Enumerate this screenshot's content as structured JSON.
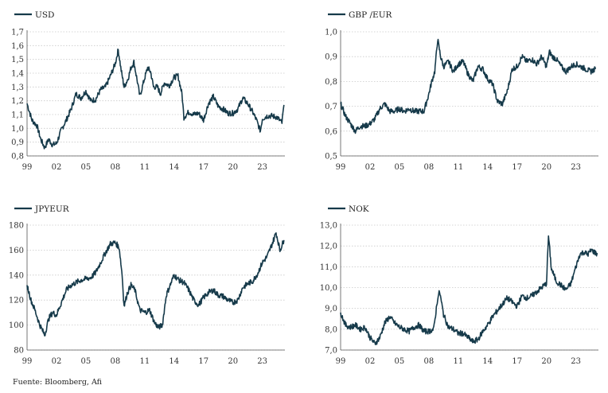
{
  "source": "Fuente: Bloomberg, Afi",
  "colors": {
    "series": "#163a4a",
    "grid": "#c9c9c9"
  },
  "chart_data": [
    {
      "type": "line",
      "legend": "USD",
      "yticks": [
        "0,8",
        "0,9",
        "1,0",
        "1,1",
        "1,2",
        "1,3",
        "1,4",
        "1,5",
        "1,6",
        "1,7"
      ],
      "ytick_values": [
        0.8,
        0.9,
        1.0,
        1.1,
        1.2,
        1.3,
        1.4,
        1.5,
        1.6,
        1.7
      ],
      "xticks": [
        "99",
        "02",
        "05",
        "08",
        "11",
        "14",
        "17",
        "20",
        "23"
      ],
      "xtick_values": [
        1999,
        2002,
        2005,
        2008,
        2011,
        2014,
        2017,
        2020,
        2023
      ],
      "xlim": [
        1999,
        2025.3
      ],
      "ylim": [
        0.8,
        1.7
      ],
      "x": [
        1999.0,
        1999.5,
        2000.0,
        2000.4,
        2000.8,
        2001.2,
        2001.6,
        2002.0,
        2002.5,
        2003.0,
        2003.5,
        2004.0,
        2004.5,
        2005.0,
        2005.5,
        2006.0,
        2006.5,
        2007.0,
        2007.5,
        2008.0,
        2008.3,
        2008.6,
        2008.9,
        2009.3,
        2009.6,
        2009.9,
        2010.3,
        2010.5,
        2010.9,
        2011.3,
        2011.6,
        2011.9,
        2012.3,
        2012.6,
        2013.0,
        2013.5,
        2014.0,
        2014.4,
        2014.8,
        2015.0,
        2015.5,
        2016.0,
        2016.5,
        2017.0,
        2017.5,
        2018.0,
        2018.5,
        2019.0,
        2019.5,
        2020.0,
        2020.5,
        2021.0,
        2021.5,
        2022.0,
        2022.4,
        2022.8,
        2023.0,
        2023.5,
        2024.0,
        2024.5,
        2025.0,
        2025.2
      ],
      "y": [
        1.18,
        1.06,
        1.02,
        0.92,
        0.86,
        0.92,
        0.88,
        0.89,
        0.99,
        1.06,
        1.14,
        1.25,
        1.22,
        1.27,
        1.2,
        1.21,
        1.28,
        1.3,
        1.38,
        1.47,
        1.57,
        1.42,
        1.3,
        1.36,
        1.44,
        1.48,
        1.32,
        1.23,
        1.34,
        1.44,
        1.41,
        1.3,
        1.3,
        1.25,
        1.33,
        1.31,
        1.37,
        1.38,
        1.25,
        1.08,
        1.12,
        1.1,
        1.11,
        1.06,
        1.18,
        1.23,
        1.16,
        1.14,
        1.11,
        1.11,
        1.14,
        1.22,
        1.18,
        1.12,
        1.06,
        0.98,
        1.07,
        1.09,
        1.09,
        1.08,
        1.04,
        1.17
      ]
    },
    {
      "type": "line",
      "legend": "GBP /EUR",
      "yticks": [
        "0,5",
        "0,6",
        "0,7",
        "0,8",
        "0,9",
        "1,0"
      ],
      "ytick_values": [
        0.5,
        0.6,
        0.7,
        0.8,
        0.9,
        1.0
      ],
      "xticks": [
        "99",
        "02",
        "05",
        "08",
        "11",
        "14",
        "17",
        "20",
        "23"
      ],
      "xtick_values": [
        1999,
        2002,
        2005,
        2008,
        2011,
        2014,
        2017,
        2020,
        2023
      ],
      "xlim": [
        1999,
        2025.3
      ],
      "ylim": [
        0.5,
        1.0
      ],
      "x": [
        1999.0,
        1999.5,
        2000.0,
        2000.5,
        2001.0,
        2001.5,
        2002.0,
        2002.5,
        2003.0,
        2003.5,
        2004.0,
        2004.5,
        2005.0,
        2005.5,
        2006.0,
        2006.5,
        2007.0,
        2007.5,
        2008.0,
        2008.3,
        2008.6,
        2008.9,
        2009.2,
        2009.5,
        2010.0,
        2010.5,
        2011.0,
        2011.5,
        2012.0,
        2012.5,
        2013.0,
        2013.5,
        2014.0,
        2014.5,
        2015.0,
        2015.5,
        2016.0,
        2016.5,
        2017.0,
        2017.5,
        2018.0,
        2018.5,
        2019.0,
        2019.5,
        2020.0,
        2020.3,
        2020.6,
        2021.0,
        2021.5,
        2022.0,
        2022.5,
        2023.0,
        2023.5,
        2024.0,
        2024.5,
        2025.0
      ],
      "y": [
        0.71,
        0.66,
        0.63,
        0.6,
        0.62,
        0.62,
        0.63,
        0.65,
        0.69,
        0.71,
        0.68,
        0.68,
        0.69,
        0.68,
        0.69,
        0.68,
        0.68,
        0.68,
        0.75,
        0.8,
        0.84,
        0.97,
        0.9,
        0.86,
        0.88,
        0.84,
        0.87,
        0.88,
        0.83,
        0.8,
        0.86,
        0.85,
        0.81,
        0.79,
        0.72,
        0.71,
        0.76,
        0.85,
        0.86,
        0.9,
        0.88,
        0.89,
        0.87,
        0.9,
        0.86,
        0.92,
        0.9,
        0.89,
        0.86,
        0.84,
        0.86,
        0.87,
        0.86,
        0.85,
        0.84,
        0.85
      ]
    },
    {
      "type": "line",
      "legend": "JPYEUR",
      "yticks": [
        "80",
        "100",
        "120",
        "140",
        "160",
        "180"
      ],
      "ytick_values": [
        80,
        100,
        120,
        140,
        160,
        180
      ],
      "xticks": [
        "99",
        "02",
        "05",
        "08",
        "11",
        "14",
        "17",
        "20",
        "23"
      ],
      "xtick_values": [
        1999,
        2002,
        2005,
        2008,
        2011,
        2014,
        2017,
        2020,
        2023
      ],
      "xlim": [
        1999,
        2025.3
      ],
      "ylim": [
        80,
        180
      ],
      "x": [
        1999.0,
        1999.4,
        1999.8,
        2000.3,
        2000.8,
        2001.2,
        2001.6,
        2002.0,
        2002.5,
        2003.0,
        2003.5,
        2004.0,
        2004.5,
        2005.0,
        2005.5,
        2006.0,
        2006.5,
        2007.0,
        2007.5,
        2008.0,
        2008.4,
        2008.7,
        2008.9,
        2009.2,
        2009.6,
        2010.0,
        2010.5,
        2011.0,
        2011.5,
        2012.0,
        2012.4,
        2012.8,
        2013.2,
        2013.6,
        2014.0,
        2014.5,
        2015.0,
        2015.5,
        2016.0,
        2016.5,
        2017.0,
        2017.5,
        2018.0,
        2018.5,
        2019.0,
        2019.5,
        2020.0,
        2020.5,
        2021.0,
        2021.5,
        2022.0,
        2022.5,
        2023.0,
        2023.5,
        2024.0,
        2024.4,
        2024.8,
        2025.2
      ],
      "y": [
        132,
        120,
        112,
        100,
        92,
        105,
        110,
        108,
        118,
        128,
        132,
        134,
        136,
        137,
        138,
        142,
        150,
        158,
        165,
        166,
        162,
        140,
        115,
        125,
        132,
        128,
        112,
        110,
        112,
        102,
        98,
        100,
        124,
        132,
        140,
        136,
        134,
        128,
        120,
        116,
        122,
        126,
        128,
        124,
        123,
        120,
        118,
        120,
        130,
        133,
        135,
        141,
        150,
        155,
        165,
        174,
        160,
        168
      ]
    },
    {
      "type": "line",
      "legend": "NOK",
      "yticks": [
        "7,0",
        "8,0",
        "9,0",
        "10,0",
        "11,0",
        "12,0",
        "13,0"
      ],
      "ytick_values": [
        7,
        8,
        9,
        10,
        11,
        12,
        13
      ],
      "xticks": [
        "99",
        "02",
        "05",
        "08",
        "11",
        "14",
        "17",
        "20",
        "23"
      ],
      "xtick_values": [
        1999,
        2002,
        2005,
        2008,
        2011,
        2014,
        2017,
        2020,
        2023
      ],
      "xlim": [
        1999,
        2025.3
      ],
      "ylim": [
        7.0,
        13.0
      ],
      "x": [
        1999.0,
        1999.5,
        2000.0,
        2000.5,
        2001.0,
        2001.5,
        2002.0,
        2002.5,
        2003.0,
        2003.5,
        2004.0,
        2004.5,
        2005.0,
        2005.5,
        2006.0,
        2006.5,
        2007.0,
        2007.5,
        2008.0,
        2008.5,
        2008.9,
        2009.1,
        2009.5,
        2010.0,
        2010.5,
        2011.0,
        2011.5,
        2012.0,
        2012.5,
        2013.0,
        2013.5,
        2014.0,
        2014.5,
        2015.0,
        2015.5,
        2016.0,
        2016.5,
        2017.0,
        2017.5,
        2018.0,
        2018.5,
        2019.0,
        2019.5,
        2020.0,
        2020.2,
        2020.5,
        2021.0,
        2021.5,
        2022.0,
        2022.5,
        2023.0,
        2023.4,
        2023.8,
        2024.2,
        2024.6,
        2025.2
      ],
      "y": [
        8.8,
        8.2,
        8.1,
        8.2,
        8.0,
        8.1,
        7.6,
        7.3,
        7.6,
        8.3,
        8.6,
        8.3,
        8.1,
        8.0,
        7.9,
        8.1,
        8.2,
        7.9,
        7.9,
        8.0,
        9.5,
        9.8,
        8.7,
        8.1,
        8.0,
        7.8,
        7.8,
        7.6,
        7.4,
        7.5,
        7.9,
        8.2,
        8.6,
        8.9,
        9.2,
        9.5,
        9.3,
        9.1,
        9.6,
        9.5,
        9.6,
        9.8,
        10.0,
        10.2,
        12.5,
        10.9,
        10.3,
        10.1,
        9.9,
        10.2,
        11.0,
        11.6,
        11.7,
        11.6,
        11.8,
        11.6
      ]
    }
  ]
}
